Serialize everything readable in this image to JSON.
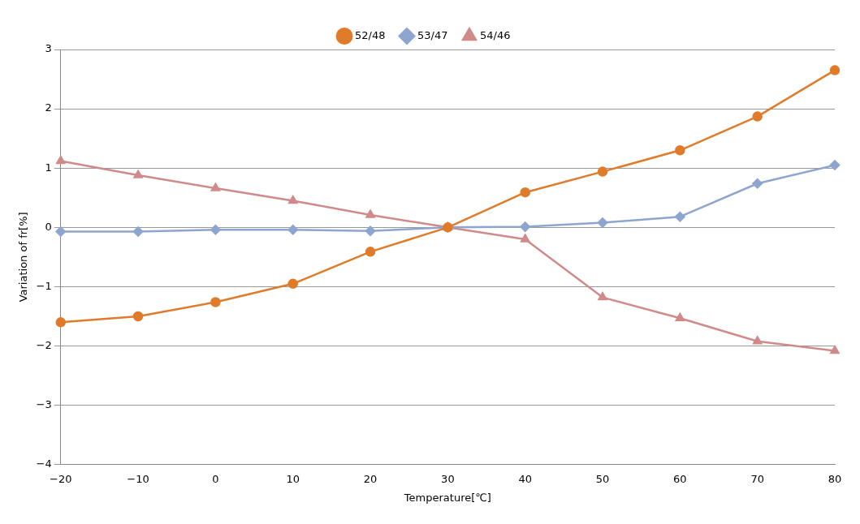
{
  "chart_data": {
    "type": "line",
    "xlabel": "Temperature[℃]",
    "ylabel": "Variation of fr[%]",
    "categories": [
      "−20",
      "−10",
      "0",
      "10",
      "20",
      "30",
      "40",
      "50",
      "60",
      "70",
      "80"
    ],
    "series": [
      {
        "name": "52/48",
        "color": "#e07b2a",
        "marker": "circle",
        "values": [
          -1.6,
          -1.5,
          -1.26,
          -0.95,
          -0.41,
          0,
          0.59,
          0.94,
          1.3,
          1.87,
          2.65
        ]
      },
      {
        "name": "53/47",
        "color": "#8ea6cf",
        "marker": "diamond",
        "values": [
          -0.07,
          -0.07,
          -0.04,
          -0.04,
          -0.06,
          0,
          0.01,
          0.08,
          0.18,
          0.74,
          1.05
        ]
      },
      {
        "name": "54/46",
        "color": "#d08a8a",
        "marker": "triangle",
        "values": [
          1.12,
          0.88,
          0.66,
          0.45,
          0.21,
          0,
          -0.2,
          -1.18,
          -1.53,
          -1.92,
          -2.08
        ]
      }
    ],
    "ylim": [
      -4,
      3
    ],
    "yticks": [
      {
        "value": -4,
        "label": "−4"
      },
      {
        "value": -3,
        "label": "−3"
      },
      {
        "value": -2,
        "label": "−2"
      },
      {
        "value": -1,
        "label": "−1"
      },
      0,
      1,
      2,
      3
    ],
    "grid": "y",
    "legend": "top",
    "line_style": "solid"
  }
}
